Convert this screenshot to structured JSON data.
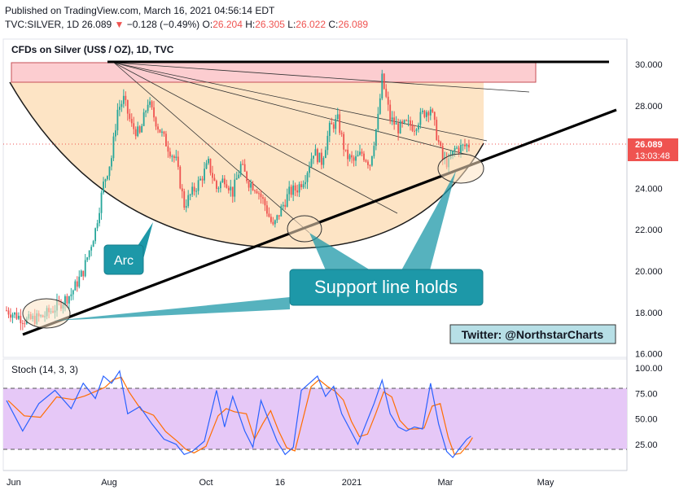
{
  "header": {
    "published": "Published on TradingView.com, March 16, 2021 04:56:14 EDT",
    "symbol": "TVC:SILVER, 1D",
    "price": "26.089",
    "arrow": "▼",
    "change": "−0.128 (−0.49%)",
    "o_label": "O:",
    "o_value": "26.204",
    "h_label": "H:",
    "h_value": "26.305",
    "l_label": "L:",
    "l_value": "26.022",
    "c_label": "C:",
    "c_value": "26.089"
  },
  "chart_data": {
    "type": "candlestick",
    "title": "CFDs on Silver (US$ / OZ), 1D, TVC",
    "x_ticks": [
      "Jun",
      "Aug",
      "Oct",
      "16",
      "2021",
      "Mar",
      "May"
    ],
    "y_ticks": [
      "30.000",
      "28.000",
      "26.000",
      "24.000",
      "22.000",
      "20.000",
      "18.000",
      "16.000"
    ],
    "ylim": [
      16,
      31.5
    ],
    "last_price": "26.089",
    "countdown": "13:03:48",
    "resistance_level": 30,
    "support_line": [
      {
        "x": "2020-06-10",
        "y": 16.85
      },
      {
        "x": "2021-04-28",
        "y": 27.7
      }
    ],
    "price_path": [
      [
        0,
        18.1
      ],
      [
        10,
        17.6
      ],
      [
        18,
        17.8
      ],
      [
        25,
        18.3
      ],
      [
        32,
        18.9
      ],
      [
        38,
        20.0
      ],
      [
        44,
        22.0
      ],
      [
        48,
        24.2
      ],
      [
        52,
        25.5
      ],
      [
        55,
        27.8
      ],
      [
        58,
        28.3
      ],
      [
        62,
        27.0
      ],
      [
        66,
        26.6
      ],
      [
        70,
        28.2
      ],
      [
        75,
        27.0
      ],
      [
        80,
        26.0
      ],
      [
        84,
        25.3
      ],
      [
        88,
        23.2
      ],
      [
        92,
        23.8
      ],
      [
        96,
        24.4
      ],
      [
        100,
        25.2
      ],
      [
        104,
        24.0
      ],
      [
        108,
        24.5
      ],
      [
        112,
        23.8
      ],
      [
        116,
        25.1
      ],
      [
        120,
        24.3
      ],
      [
        124,
        24.0
      ],
      [
        128,
        23.2
      ],
      [
        132,
        22.1
      ],
      [
        136,
        23.0
      ],
      [
        140,
        23.8
      ],
      [
        144,
        24.0
      ],
      [
        148,
        24.6
      ],
      [
        152,
        25.8
      ],
      [
        156,
        25.3
      ],
      [
        160,
        26.9
      ],
      [
        164,
        27.3
      ],
      [
        168,
        25.6
      ],
      [
        172,
        25.3
      ],
      [
        176,
        25.7
      ],
      [
        180,
        25.2
      ],
      [
        184,
        27.4
      ],
      [
        186,
        29.3
      ],
      [
        190,
        27.4
      ],
      [
        194,
        26.9
      ],
      [
        198,
        27.1
      ],
      [
        202,
        27.0
      ],
      [
        206,
        27.6
      ],
      [
        210,
        27.9
      ],
      [
        213,
        26.6
      ],
      [
        216,
        25.4
      ],
      [
        219,
        25.2
      ],
      [
        222,
        25.9
      ],
      [
        226,
        26.0
      ],
      [
        229,
        26.1
      ]
    ],
    "annotations": [
      {
        "text": "Arc"
      },
      {
        "text": "Support line holds"
      },
      {
        "text": "Twitter: @NorthstarCharts"
      }
    ],
    "indicator": {
      "name": "Stoch (14, 3, 3)",
      "y_ticks": [
        "100.00",
        "75.00",
        "50.00",
        "25.00"
      ],
      "bands": [
        20,
        80
      ],
      "k_path": [
        [
          0,
          68
        ],
        [
          8,
          38
        ],
        [
          16,
          65
        ],
        [
          24,
          78
        ],
        [
          32,
          60
        ],
        [
          38,
          85
        ],
        [
          44,
          70
        ],
        [
          48,
          92
        ],
        [
          52,
          85
        ],
        [
          56,
          97
        ],
        [
          60,
          55
        ],
        [
          66,
          62
        ],
        [
          72,
          45
        ],
        [
          78,
          30
        ],
        [
          84,
          25
        ],
        [
          88,
          15
        ],
        [
          92,
          18
        ],
        [
          98,
          28
        ],
        [
          104,
          78
        ],
        [
          108,
          42
        ],
        [
          112,
          72
        ],
        [
          118,
          38
        ],
        [
          122,
          22
        ],
        [
          126,
          68
        ],
        [
          130,
          48
        ],
        [
          134,
          28
        ],
        [
          138,
          15
        ],
        [
          142,
          22
        ],
        [
          146,
          78
        ],
        [
          150,
          85
        ],
        [
          154,
          92
        ],
        [
          158,
          72
        ],
        [
          162,
          82
        ],
        [
          166,
          55
        ],
        [
          170,
          40
        ],
        [
          174,
          25
        ],
        [
          178,
          45
        ],
        [
          182,
          65
        ],
        [
          186,
          88
        ],
        [
          190,
          55
        ],
        [
          194,
          42
        ],
        [
          198,
          38
        ],
        [
          202,
          42
        ],
        [
          206,
          40
        ],
        [
          210,
          85
        ],
        [
          214,
          45
        ],
        [
          218,
          18
        ],
        [
          221,
          12
        ],
        [
          224,
          20
        ],
        [
          228,
          30
        ],
        [
          230,
          33
        ]
      ]
    }
  },
  "colors": {
    "up": "#26a69a",
    "down": "#ef5350",
    "arc_fill": "#fde4c5",
    "resistance_fill": "#fccdd0",
    "stoch_fill": "#e6c8f7",
    "stoch_k": "#2962ff",
    "stoch_d": "#ff6d00",
    "callout": "#1d98a8",
    "callout_border": "#167d8b"
  }
}
